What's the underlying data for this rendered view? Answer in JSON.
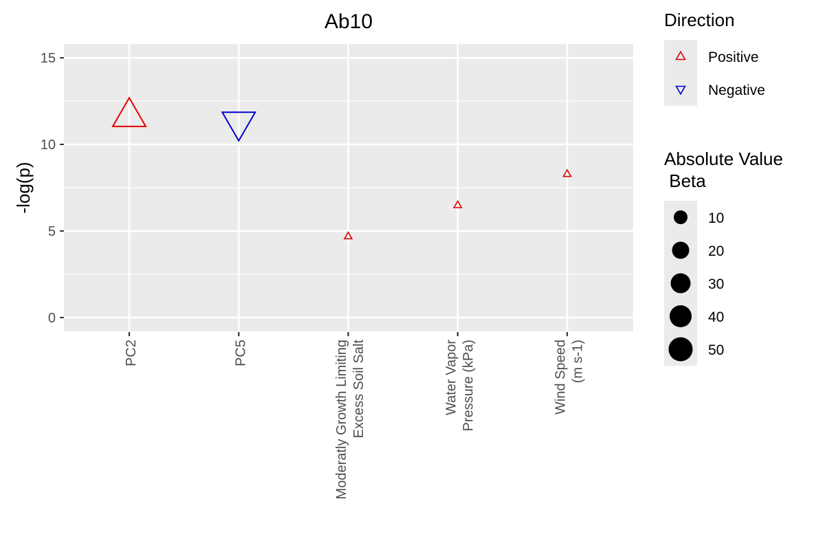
{
  "chart_data": {
    "type": "scatter",
    "title": "Ab10",
    "xlabel": "",
    "ylabel": "-log(p)",
    "ylim": [
      -0.8,
      15.8
    ],
    "yticks": [
      0,
      5,
      10,
      15
    ],
    "ytick_labels": [
      "0",
      "5",
      "10",
      "15"
    ],
    "grid": true,
    "categories": [
      [
        "PC2"
      ],
      [
        "PC5"
      ],
      [
        "Moderatly Growth Limiting",
        "Excess Soil Salt"
      ],
      [
        "Water Vapor",
        "Pressure (kPa)"
      ],
      [
        "Wind Speed",
        "(m s-1)"
      ]
    ],
    "points": [
      {
        "y": 11.7,
        "direction": "Positive",
        "beta": 60
      },
      {
        "y": 11.2,
        "direction": "Negative",
        "beta": 60
      },
      {
        "y": 4.7,
        "direction": "Positive",
        "beta": 5
      },
      {
        "y": 6.5,
        "direction": "Positive",
        "beta": 5
      },
      {
        "y": 8.3,
        "direction": "Positive",
        "beta": 5
      }
    ],
    "colors": {
      "Positive": "#e00000",
      "Negative": "#0000cc"
    },
    "legend": {
      "direction_title": "Direction",
      "direction_items": [
        "Positive",
        "Negative"
      ],
      "size_title_lines": [
        "Absolute Value",
        " Beta"
      ],
      "size_items": [
        10,
        20,
        30,
        40,
        50
      ],
      "placement": "right"
    }
  }
}
